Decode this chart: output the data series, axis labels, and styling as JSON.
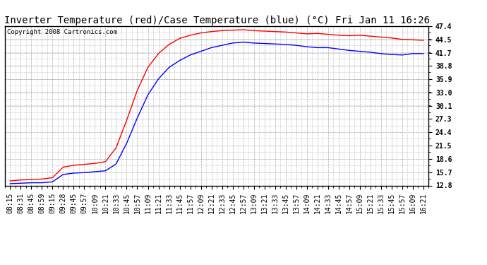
{
  "title": "Inverter Temperature (red)/Case Temperature (blue) (°C) Fri Jan 11 16:26",
  "copyright": "Copyright 2008 Cartronics.com",
  "yticks": [
    12.8,
    15.7,
    18.6,
    21.5,
    24.4,
    27.3,
    30.1,
    33.0,
    35.9,
    38.8,
    41.7,
    44.5,
    47.4
  ],
  "ymin": 12.8,
  "ymax": 47.4,
  "xtick_labels": [
    "08:15",
    "08:31",
    "08:45",
    "08:59",
    "09:15",
    "09:28",
    "09:45",
    "09:57",
    "10:09",
    "10:21",
    "10:33",
    "10:45",
    "10:57",
    "11:09",
    "11:21",
    "11:33",
    "11:45",
    "11:57",
    "12:09",
    "12:21",
    "12:33",
    "12:45",
    "12:57",
    "13:09",
    "13:21",
    "13:33",
    "13:45",
    "13:57",
    "14:09",
    "14:21",
    "14:33",
    "14:45",
    "14:57",
    "15:09",
    "15:21",
    "15:33",
    "15:45",
    "15:57",
    "16:09",
    "16:21"
  ],
  "red_data": [
    13.8,
    14.0,
    14.1,
    14.2,
    14.5,
    16.8,
    17.2,
    17.4,
    17.6,
    18.0,
    21.0,
    27.0,
    33.5,
    38.5,
    41.5,
    43.5,
    44.8,
    45.5,
    46.0,
    46.3,
    46.5,
    46.6,
    46.7,
    46.5,
    46.4,
    46.3,
    46.2,
    46.0,
    45.8,
    45.9,
    45.7,
    45.5,
    45.4,
    45.5,
    45.3,
    45.1,
    44.9,
    44.6,
    44.5,
    44.4
  ],
  "blue_data": [
    13.2,
    13.3,
    13.4,
    13.4,
    13.6,
    15.2,
    15.5,
    15.6,
    15.8,
    16.0,
    17.5,
    22.0,
    27.5,
    32.5,
    36.0,
    38.5,
    40.0,
    41.2,
    42.0,
    42.8,
    43.3,
    43.8,
    44.0,
    43.8,
    43.7,
    43.6,
    43.5,
    43.3,
    43.0,
    42.8,
    42.8,
    42.5,
    42.2,
    42.0,
    41.8,
    41.5,
    41.3,
    41.2,
    41.5,
    41.5
  ],
  "line_color_red": "#ff0000",
  "line_color_blue": "#0000ff",
  "bg_color": "#ffffff",
  "grid_color": "#999999",
  "title_fontsize": 10,
  "tick_fontsize": 7,
  "copyright_fontsize": 6.5
}
